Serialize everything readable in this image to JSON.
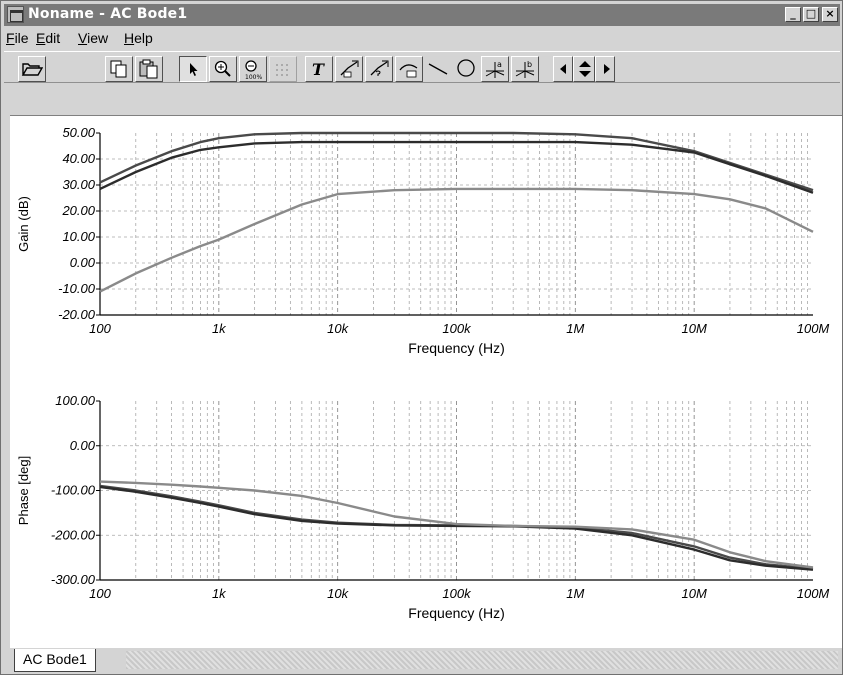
{
  "window": {
    "title": "Noname - AC Bode1",
    "controls": {
      "minimize": "_",
      "maximize": "□",
      "close": "×"
    }
  },
  "menu": [
    {
      "label": "File",
      "accel": "F",
      "rest": "ile"
    },
    {
      "label": "Edit",
      "accel": "E",
      "rest": "dit"
    },
    {
      "label": "View",
      "accel": "V",
      "rest": "iew"
    },
    {
      "label": "Help",
      "accel": "H",
      "rest": "elp"
    }
  ],
  "toolbar": {
    "icons": [
      "open-folder-icon",
      "copy-icon",
      "paste-icon",
      "pointer-icon",
      "zoom-in-icon",
      "zoom-100-icon",
      "grid-icon",
      "text-icon",
      "line-marker-icon",
      "marker-q-icon",
      "curve-icon",
      "line-icon",
      "circle-icon",
      "cursor-a-icon",
      "cursor-b-icon",
      "scroll-left-icon",
      "scroll-updown-icon",
      "scroll-right-icon"
    ],
    "text_glyph": "T",
    "zoom_label": "100%",
    "cursor_a": "a",
    "cursor_b": "b"
  },
  "chart_data": [
    {
      "type": "line",
      "xscale": "log",
      "xlim": [
        100,
        100000000
      ],
      "ylim": [
        -20,
        50
      ],
      "ylabel": "Gain (dB)",
      "xlabel": "Frequency (Hz)",
      "xticks": [
        "100",
        "1k",
        "10k",
        "100k",
        "1M",
        "10M",
        "100M"
      ],
      "yticks": [
        "50.00",
        "40.00",
        "30.00",
        "20.00",
        "10.00",
        "0.00",
        "-10.00",
        "-20.00"
      ],
      "grid": true,
      "x": [
        100,
        200,
        400,
        700,
        1000,
        2000,
        5000,
        10000,
        30000,
        100000,
        300000,
        1000000,
        3000000,
        10000000,
        20000000,
        40000000,
        100000000
      ],
      "series": [
        {
          "color": "#4a4a4a",
          "values": [
            31,
            37.5,
            43,
            46.5,
            48,
            49.5,
            50,
            50,
            50,
            50,
            50,
            49.5,
            48,
            43,
            38.5,
            34,
            28
          ]
        },
        {
          "color": "#2c2c2c",
          "values": [
            28.5,
            35,
            40.5,
            43.5,
            44.5,
            46,
            46.5,
            46.5,
            46.5,
            46.5,
            46.5,
            46.5,
            45.5,
            42.5,
            38,
            33.5,
            27
          ]
        },
        {
          "color": "#8a8a8a",
          "values": [
            -11,
            -4,
            2,
            6.5,
            9,
            15,
            22.5,
            26.5,
            28,
            28.5,
            28.5,
            28.5,
            28,
            26.5,
            24.5,
            21,
            12
          ]
        }
      ]
    },
    {
      "type": "line",
      "xscale": "log",
      "xlim": [
        100,
        100000000
      ],
      "ylim": [
        -300,
        100
      ],
      "ylabel": "Phase [deg]",
      "xlabel": "Frequency (Hz)",
      "xticks": [
        "100",
        "1k",
        "10k",
        "100k",
        "1M",
        "10M",
        "100M"
      ],
      "yticks": [
        "100.00",
        "0.00",
        "-100.00",
        "-200.00",
        "-300.00"
      ],
      "grid": true,
      "x": [
        100,
        200,
        400,
        700,
        1000,
        2000,
        5000,
        10000,
        30000,
        100000,
        300000,
        1000000,
        3000000,
        10000000,
        20000000,
        40000000,
        100000000
      ],
      "series": [
        {
          "color": "#4a4a4a",
          "values": [
            -90,
            -100,
            -113,
            -125,
            -133,
            -150,
            -165,
            -172,
            -177,
            -178,
            -179,
            -183,
            -195,
            -225,
            -250,
            -265,
            -275
          ]
        },
        {
          "color": "#2c2c2c",
          "values": [
            -92,
            -103,
            -116,
            -128,
            -136,
            -153,
            -168,
            -174,
            -178,
            -179,
            -180,
            -185,
            -200,
            -232,
            -256,
            -268,
            -277
          ]
        },
        {
          "color": "#8a8a8a",
          "values": [
            -80,
            -83,
            -87,
            -91,
            -94,
            -100,
            -112,
            -128,
            -158,
            -175,
            -179,
            -181,
            -187,
            -210,
            -238,
            -258,
            -272
          ]
        }
      ]
    }
  ],
  "tabs": [
    {
      "label": "AC Bode1"
    }
  ]
}
